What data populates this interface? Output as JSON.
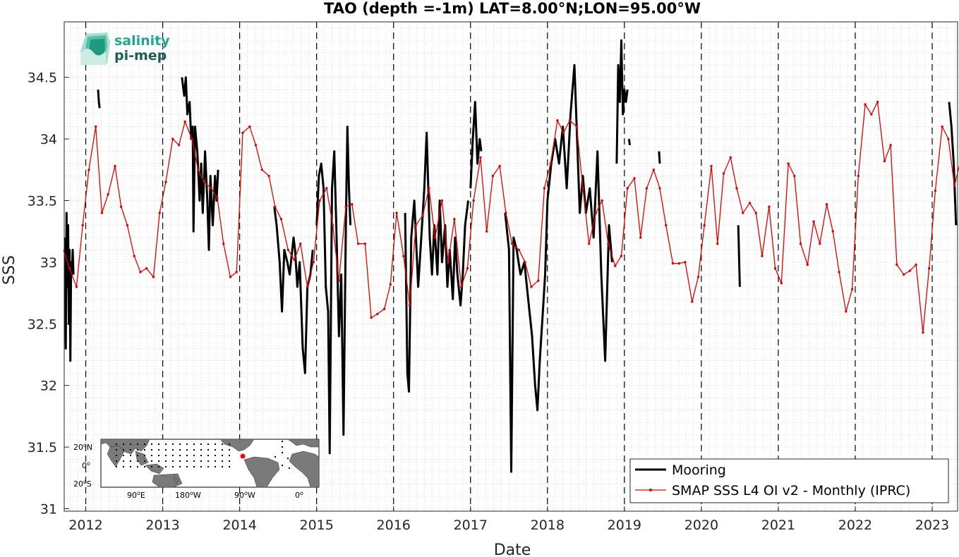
{
  "chart_data": {
    "type": "line",
    "title": "TAO (depth =-1m) LAT=8.00°N;LON=95.00°W",
    "xlabel": "Date",
    "ylabel": "SSS",
    "xlim": [
      2011.72,
      2023.33
    ],
    "ylim": [
      30.98,
      34.95
    ],
    "x_ticks": [
      2012,
      2013,
      2014,
      2015,
      2016,
      2017,
      2018,
      2019,
      2020,
      2021,
      2022,
      2023
    ],
    "y_ticks": [
      31,
      31.5,
      32,
      32.5,
      33,
      33.5,
      34,
      34.5
    ],
    "y_tick_labels": [
      "31",
      "31.5",
      "32",
      "32.5",
      "33",
      "33.5",
      "34",
      "34.5"
    ],
    "grid": "on (dotted minor)",
    "year_markers": "dashed vertical lines at each year",
    "legend_position": "bottom-right",
    "series": [
      {
        "name": "Mooring",
        "color": "#000000",
        "style": "thick black line with gaps",
        "segments": [
          [
            [
              2011.73,
              33.2
            ],
            [
              2011.74,
              32.3
            ],
            [
              2011.75,
              33.4
            ],
            [
              2011.76,
              32.8
            ],
            [
              2011.77,
              33.3
            ],
            [
              2011.78,
              32.5
            ],
            [
              2011.79,
              33.1
            ],
            [
              2011.8,
              32.2
            ],
            [
              2011.81,
              33.0
            ],
            [
              2011.82,
              32.9
            ],
            [
              2011.83,
              33.1
            ],
            [
              2011.84,
              32.9
            ]
          ],
          [
            [
              2012.16,
              34.4
            ],
            [
              2012.17,
              34.3
            ],
            [
              2012.18,
              34.25
            ]
          ],
          [
            [
              2013.25,
              34.5
            ],
            [
              2013.28,
              34.35
            ],
            [
              2013.3,
              34.5
            ],
            [
              2013.32,
              34.2
            ],
            [
              2013.35,
              34.3
            ],
            [
              2013.37,
              34.0
            ],
            [
              2013.39,
              34.1
            ],
            [
              2013.4,
              33.25
            ],
            [
              2013.42,
              34.1
            ],
            [
              2013.45,
              33.9
            ],
            [
              2013.48,
              33.5
            ],
            [
              2013.5,
              33.8
            ],
            [
              2013.52,
              33.4
            ],
            [
              2013.55,
              33.9
            ],
            [
              2013.58,
              33.5
            ],
            [
              2013.6,
              33.1
            ],
            [
              2013.62,
              33.7
            ],
            [
              2013.65,
              33.3
            ],
            [
              2013.68,
              33.7
            ],
            [
              2013.7,
              33.5
            ],
            [
              2013.72,
              33.75
            ]
          ],
          [
            [
              2014.45,
              33.45
            ],
            [
              2014.48,
              33.3
            ],
            [
              2014.52,
              33.0
            ],
            [
              2014.55,
              32.6
            ],
            [
              2014.58,
              33.1
            ],
            [
              2014.62,
              33.0
            ],
            [
              2014.65,
              32.9
            ],
            [
              2014.7,
              33.2
            ],
            [
              2014.72,
              33.1
            ],
            [
              2014.75,
              32.8
            ],
            [
              2014.78,
              33.0
            ],
            [
              2014.82,
              32.3
            ],
            [
              2014.85,
              32.1
            ],
            [
              2014.88,
              32.8
            ],
            [
              2014.92,
              32.9
            ],
            [
              2014.95,
              33.1
            ]
          ],
          [
            [
              2015.0,
              33.3
            ],
            [
              2015.03,
              33.7
            ],
            [
              2015.06,
              33.8
            ],
            [
              2015.09,
              33.6
            ],
            [
              2015.12,
              32.8
            ],
            [
              2015.15,
              32.6
            ],
            [
              2015.17,
              31.45
            ],
            [
              2015.2,
              33.6
            ],
            [
              2015.23,
              33.9
            ],
            [
              2015.26,
              33.2
            ],
            [
              2015.29,
              32.4
            ],
            [
              2015.32,
              32.9
            ],
            [
              2015.35,
              31.6
            ],
            [
              2015.38,
              33.3
            ],
            [
              2015.4,
              34.1
            ],
            [
              2015.42,
              33.6
            ],
            [
              2015.44,
              33.3
            ]
          ],
          [
            [
              2016.15,
              33.4
            ],
            [
              2016.18,
              32.1
            ],
            [
              2016.2,
              31.95
            ],
            [
              2016.23,
              33.2
            ],
            [
              2016.27,
              33.5
            ],
            [
              2016.32,
              32.8
            ],
            [
              2016.36,
              33.2
            ],
            [
              2016.4,
              33.6
            ],
            [
              2016.43,
              34.05
            ],
            [
              2016.47,
              33.2
            ],
            [
              2016.5,
              32.9
            ],
            [
              2016.53,
              33.3
            ],
            [
              2016.57,
              32.9
            ],
            [
              2016.6,
              33.5
            ],
            [
              2016.63,
              33.0
            ],
            [
              2016.67,
              33.3
            ],
            [
              2016.7,
              32.8
            ],
            [
              2016.73,
              33.1
            ],
            [
              2016.77,
              32.7
            ],
            [
              2016.8,
              33.2
            ],
            [
              2016.83,
              32.9
            ],
            [
              2016.87,
              32.65
            ],
            [
              2016.9,
              32.9
            ],
            [
              2016.93,
              33.3
            ],
            [
              2016.97,
              33.5
            ]
          ],
          [
            [
              2017.0,
              33.6
            ],
            [
              2017.03,
              34.0
            ],
            [
              2017.06,
              34.3
            ],
            [
              2017.09,
              33.8
            ],
            [
              2017.12,
              34.0
            ],
            [
              2017.14,
              33.9
            ]
          ],
          [
            [
              2017.45,
              33.4
            ],
            [
              2017.5,
              33.1
            ],
            [
              2017.53,
              31.3
            ],
            [
              2017.56,
              33.2
            ],
            [
              2017.6,
              33.1
            ],
            [
              2017.65,
              32.9
            ],
            [
              2017.7,
              33.0
            ],
            [
              2017.75,
              32.7
            ],
            [
              2017.8,
              32.4
            ],
            [
              2017.84,
              32.0
            ],
            [
              2017.87,
              31.8
            ],
            [
              2017.9,
              32.2
            ],
            [
              2017.94,
              32.6
            ],
            [
              2017.97,
              32.9
            ],
            [
              2018.0,
              33.5
            ],
            [
              2018.05,
              33.8
            ],
            [
              2018.1,
              34.0
            ],
            [
              2018.15,
              33.8
            ],
            [
              2018.2,
              34.1
            ],
            [
              2018.25,
              33.6
            ],
            [
              2018.3,
              34.2
            ],
            [
              2018.35,
              34.6
            ],
            [
              2018.38,
              34.1
            ],
            [
              2018.42,
              33.4
            ],
            [
              2018.46,
              33.7
            ],
            [
              2018.5,
              33.4
            ],
            [
              2018.55,
              33.6
            ],
            [
              2018.6,
              33.2
            ],
            [
              2018.65,
              33.9
            ],
            [
              2018.7,
              32.9
            ],
            [
              2018.75,
              32.2
            ],
            [
              2018.8,
              33.3
            ],
            [
              2018.84,
              33.0
            ]
          ],
          [
            [
              2018.9,
              33.8
            ],
            [
              2018.92,
              34.6
            ],
            [
              2018.94,
              34.3
            ],
            [
              2018.96,
              34.8
            ],
            [
              2018.98,
              34.2
            ],
            [
              2019.0,
              34.4
            ],
            [
              2019.02,
              34.3
            ],
            [
              2019.04,
              34.4
            ]
          ],
          [
            [
              2019.06,
              34.0
            ],
            [
              2019.07,
              33.95
            ]
          ],
          [
            [
              2019.45,
              33.9
            ],
            [
              2019.46,
              33.8
            ]
          ],
          [
            [
              2020.48,
              33.3
            ],
            [
              2020.5,
              32.8
            ]
          ],
          [
            [
              2023.22,
              34.3
            ],
            [
              2023.25,
              34.1
            ],
            [
              2023.28,
              33.8
            ],
            [
              2023.31,
              33.3
            ]
          ]
        ]
      },
      {
        "name": "SMAP SSS L4 OI v2 - Monthly (IPRC)",
        "color": "#e00000",
        "style": "thin red line with dot markers",
        "x": [
          2011.71,
          2011.79,
          2011.88,
          2011.96,
          2012.04,
          2012.13,
          2012.21,
          2012.29,
          2012.38,
          2012.46,
          2012.54,
          2012.63,
          2012.71,
          2012.79,
          2012.88,
          2012.96,
          2013.04,
          2013.13,
          2013.21,
          2013.29,
          2013.38,
          2013.46,
          2013.54,
          2013.63,
          2013.71,
          2013.79,
          2013.88,
          2013.96,
          2014.04,
          2014.13,
          2014.21,
          2014.29,
          2014.38,
          2014.46,
          2014.54,
          2014.63,
          2014.71,
          2014.79,
          2014.88,
          2014.96,
          2015.04,
          2015.13,
          2015.21,
          2015.29,
          2015.38,
          2015.46,
          2015.54,
          2015.63,
          2015.71,
          2015.79,
          2015.88,
          2015.96,
          2016.04,
          2016.13,
          2016.21,
          2016.29,
          2016.38,
          2016.46,
          2016.54,
          2016.63,
          2016.71,
          2016.79,
          2016.88,
          2016.96,
          2017.04,
          2017.13,
          2017.21,
          2017.29,
          2017.38,
          2017.46,
          2017.54,
          2017.63,
          2017.71,
          2017.79,
          2017.88,
          2017.96,
          2018.04,
          2018.13,
          2018.21,
          2018.29,
          2018.38,
          2018.46,
          2018.54,
          2018.63,
          2018.71,
          2018.79,
          2018.88,
          2018.96,
          2019.04,
          2019.13,
          2019.21,
          2019.29,
          2019.38,
          2019.46,
          2019.54,
          2019.63,
          2019.71,
          2019.79,
          2019.88,
          2019.96,
          2020.04,
          2020.13,
          2020.21,
          2020.29,
          2020.38,
          2020.46,
          2020.54,
          2020.63,
          2020.71,
          2020.79,
          2020.88,
          2020.96,
          2021.04,
          2021.13,
          2021.21,
          2021.29,
          2021.38,
          2021.46,
          2021.54,
          2021.63,
          2021.71,
          2021.79,
          2021.88,
          2021.96,
          2022.04,
          2022.13,
          2022.21,
          2022.29,
          2022.38,
          2022.46,
          2022.54,
          2022.63,
          2022.71,
          2022.79,
          2022.88,
          2022.96,
          2023.04,
          2023.13,
          2023.21,
          2023.29,
          2023.37
        ],
        "values": [
          33.1,
          32.95,
          32.8,
          33.3,
          33.75,
          34.1,
          33.4,
          33.55,
          33.78,
          33.45,
          33.3,
          33.05,
          32.92,
          32.95,
          32.88,
          33.4,
          33.65,
          34.0,
          33.95,
          34.14,
          34.0,
          33.75,
          33.65,
          33.6,
          33.52,
          33.15,
          32.88,
          32.92,
          34.05,
          34.1,
          33.95,
          33.75,
          33.7,
          33.45,
          33.35,
          33.1,
          33.02,
          33.15,
          32.8,
          33.0,
          33.5,
          33.6,
          33.3,
          32.85,
          33.45,
          33.47,
          33.15,
          33.15,
          32.55,
          32.58,
          32.62,
          32.82,
          33.4,
          33.05,
          32.65,
          33.3,
          33.38,
          33.6,
          33.2,
          33.5,
          33.0,
          33.35,
          32.8,
          32.95,
          33.5,
          33.85,
          33.25,
          33.7,
          33.78,
          33.4,
          33.15,
          33.1,
          33.0,
          32.8,
          32.85,
          33.6,
          33.8,
          34.15,
          34.05,
          34.15,
          34.1,
          33.6,
          33.15,
          33.4,
          33.5,
          33.15,
          32.97,
          33.05,
          33.6,
          33.68,
          33.2,
          33.6,
          33.75,
          33.6,
          33.3,
          32.99,
          32.99,
          33.0,
          32.68,
          32.88,
          33.3,
          33.78,
          33.15,
          33.72,
          33.85,
          33.6,
          33.4,
          33.48,
          33.4,
          33.05,
          33.45,
          32.95,
          32.83,
          33.8,
          33.7,
          33.15,
          32.98,
          33.33,
          33.15,
          33.47,
          33.25,
          32.92,
          32.6,
          32.78,
          33.7,
          34.28,
          34.2,
          34.3,
          33.82,
          33.95,
          32.98,
          32.9,
          32.93,
          32.98,
          32.43,
          32.95,
          33.58,
          34.1,
          34.0,
          33.62,
          33.83
        ]
      }
    ]
  },
  "legend": {
    "entries": [
      {
        "label": "Mooring",
        "color": "#000000"
      },
      {
        "label": "SMAP SSS L4 OI v2 - Monthly (IPRC)",
        "color": "#e00000"
      }
    ]
  },
  "logo": {
    "line1": "salinity",
    "line2": "pi-mep",
    "color1": "#20a88f",
    "color2": "#1d5f55"
  },
  "inset_map": {
    "y_labels": [
      "20",
      "N",
      "0",
      "20",
      "S"
    ],
    "x_labels": [
      "90",
      "E",
      "180",
      "W",
      "90",
      "W",
      "0"
    ],
    "degree_symbol": "o",
    "land_color": "#7a7a7a",
    "marker_color": "#ff0000"
  }
}
